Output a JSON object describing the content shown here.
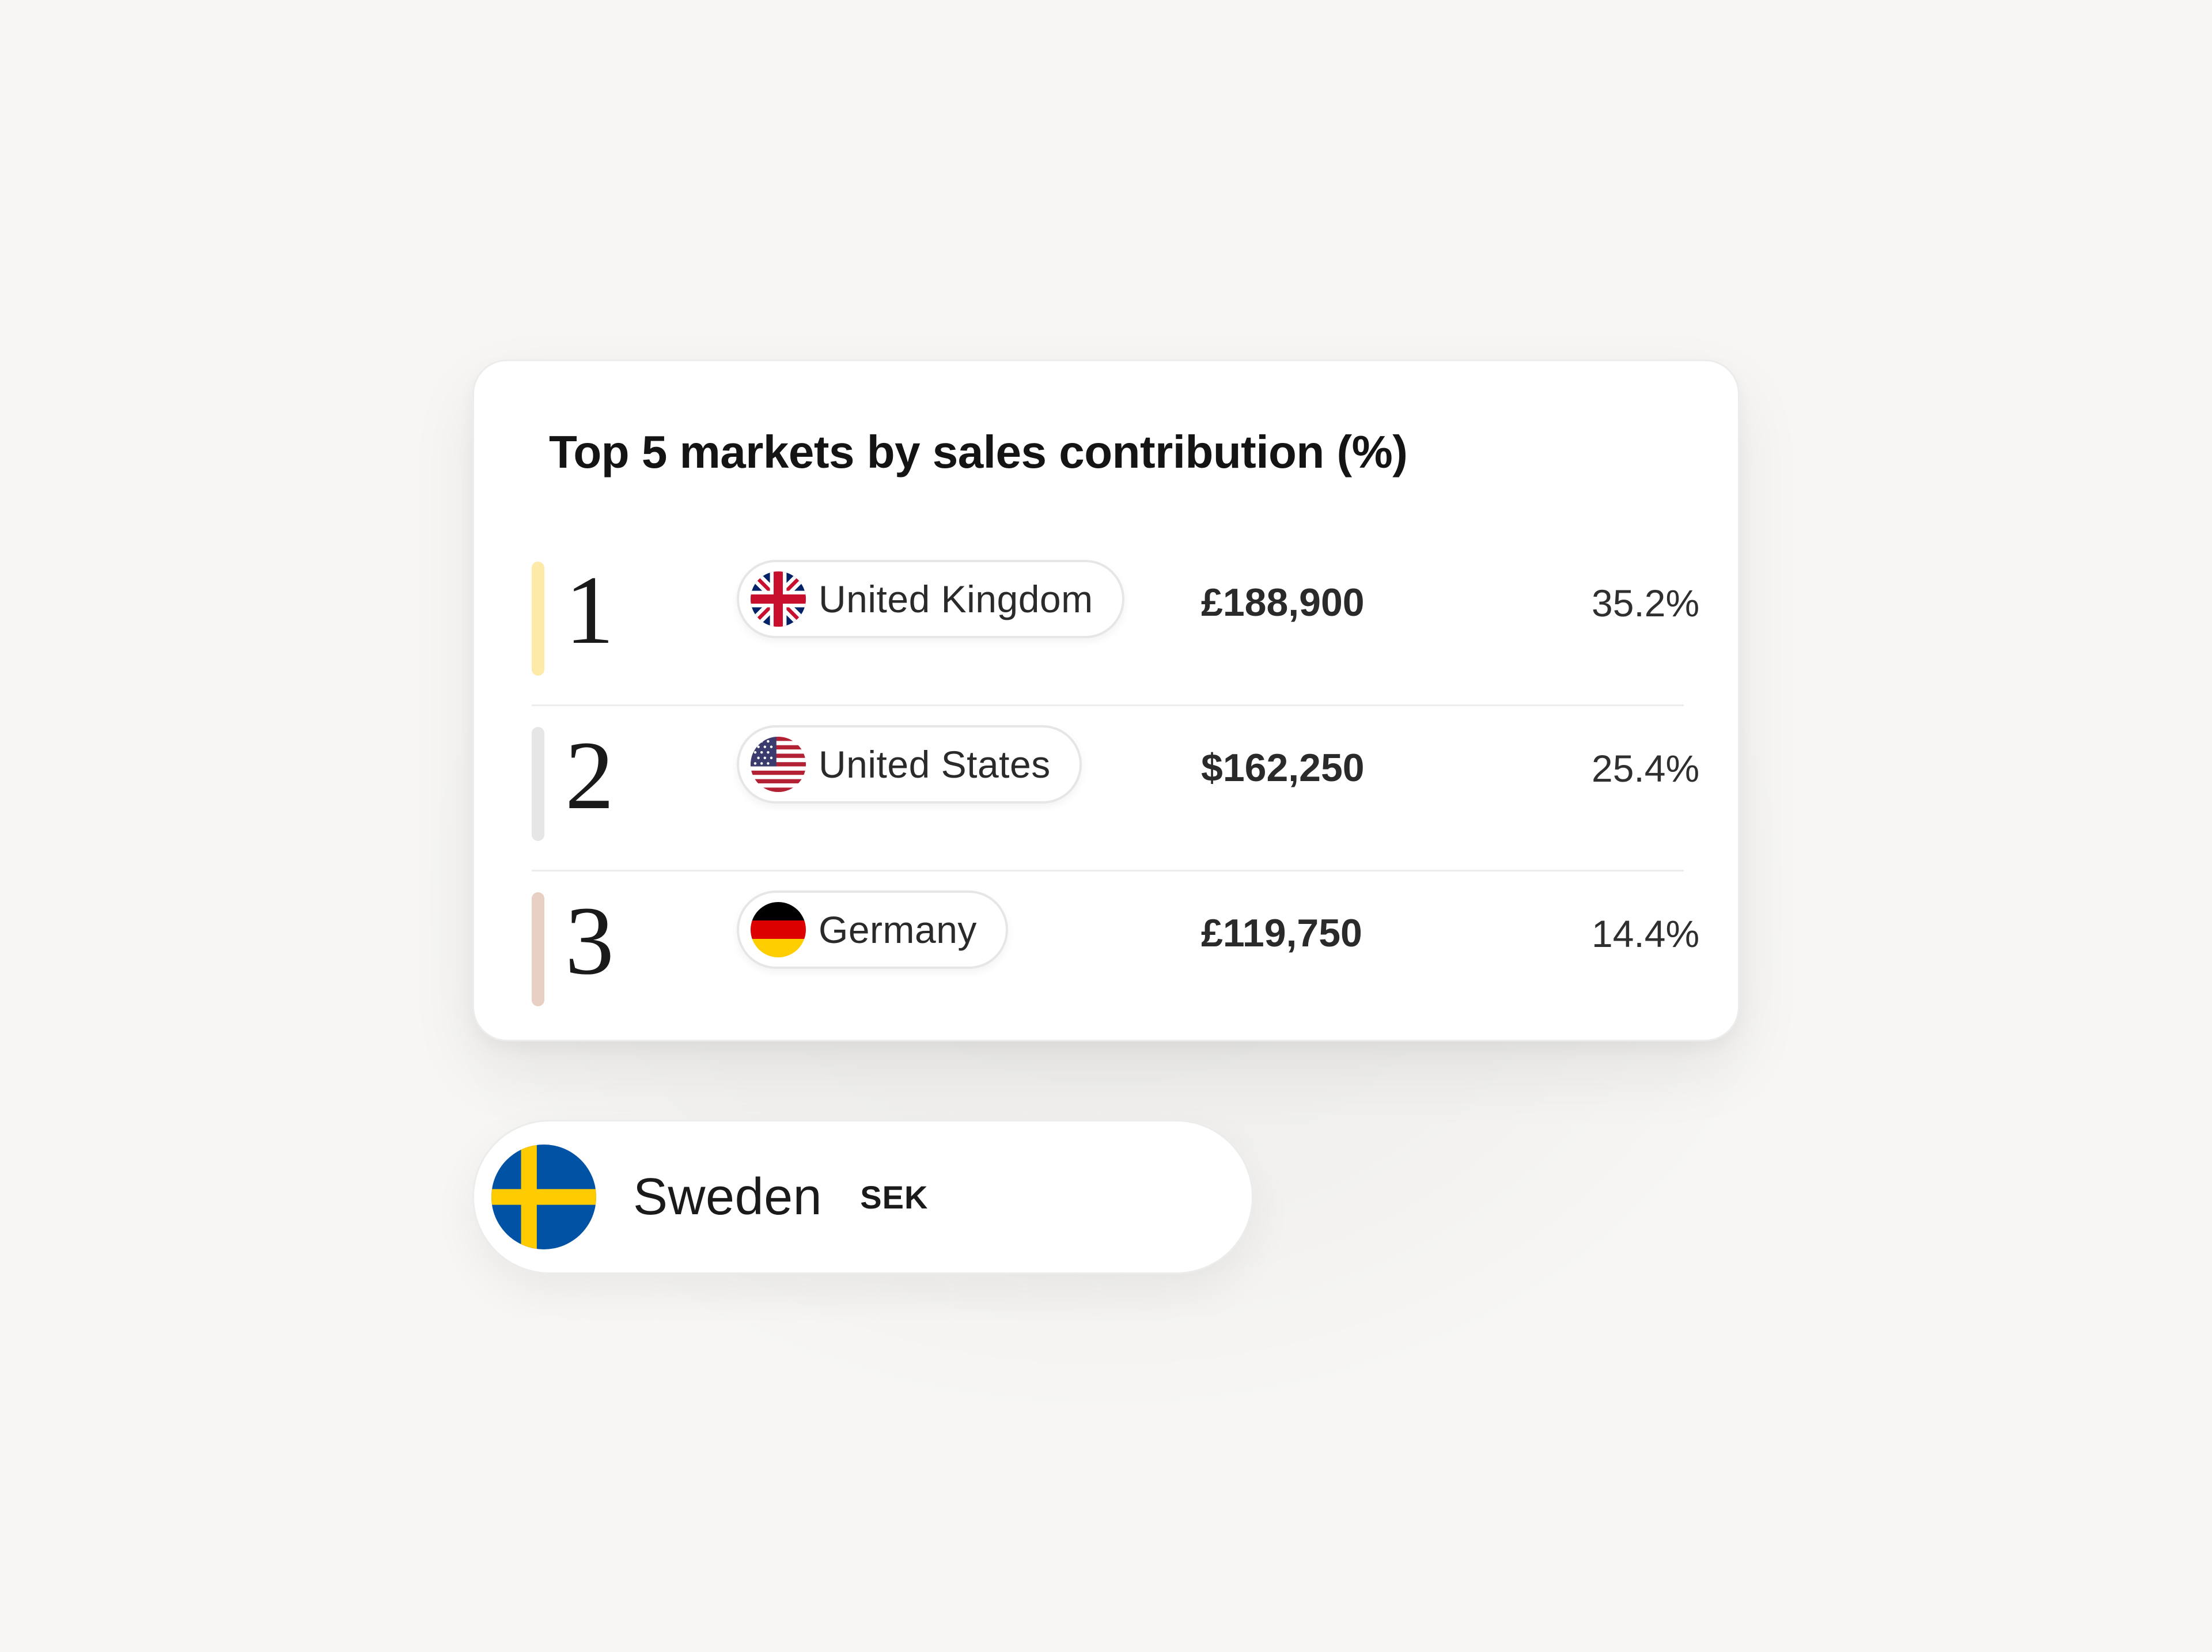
{
  "card": {
    "title": "Top 5 markets by sales contribution (%)"
  },
  "markets": [
    {
      "rank": "1",
      "country": "United Kingdom",
      "flag_icon": "uk-flag-icon",
      "amount": "£188,900",
      "percent": "35.2%",
      "rank_color": "#fde9a8"
    },
    {
      "rank": "2",
      "country": "United States",
      "flag_icon": "us-flag-icon",
      "amount": "$162,250",
      "percent": "25.4%",
      "rank_color": "#e6e6e6"
    },
    {
      "rank": "3",
      "country": "Germany",
      "flag_icon": "germany-flag-icon",
      "amount": "£119,750",
      "percent": "14.4%",
      "rank_color": "#e8cfc4"
    }
  ],
  "currency_selector": {
    "country": "Sweden",
    "code": "SEK",
    "flag_icon": "sweden-flag-icon"
  }
}
